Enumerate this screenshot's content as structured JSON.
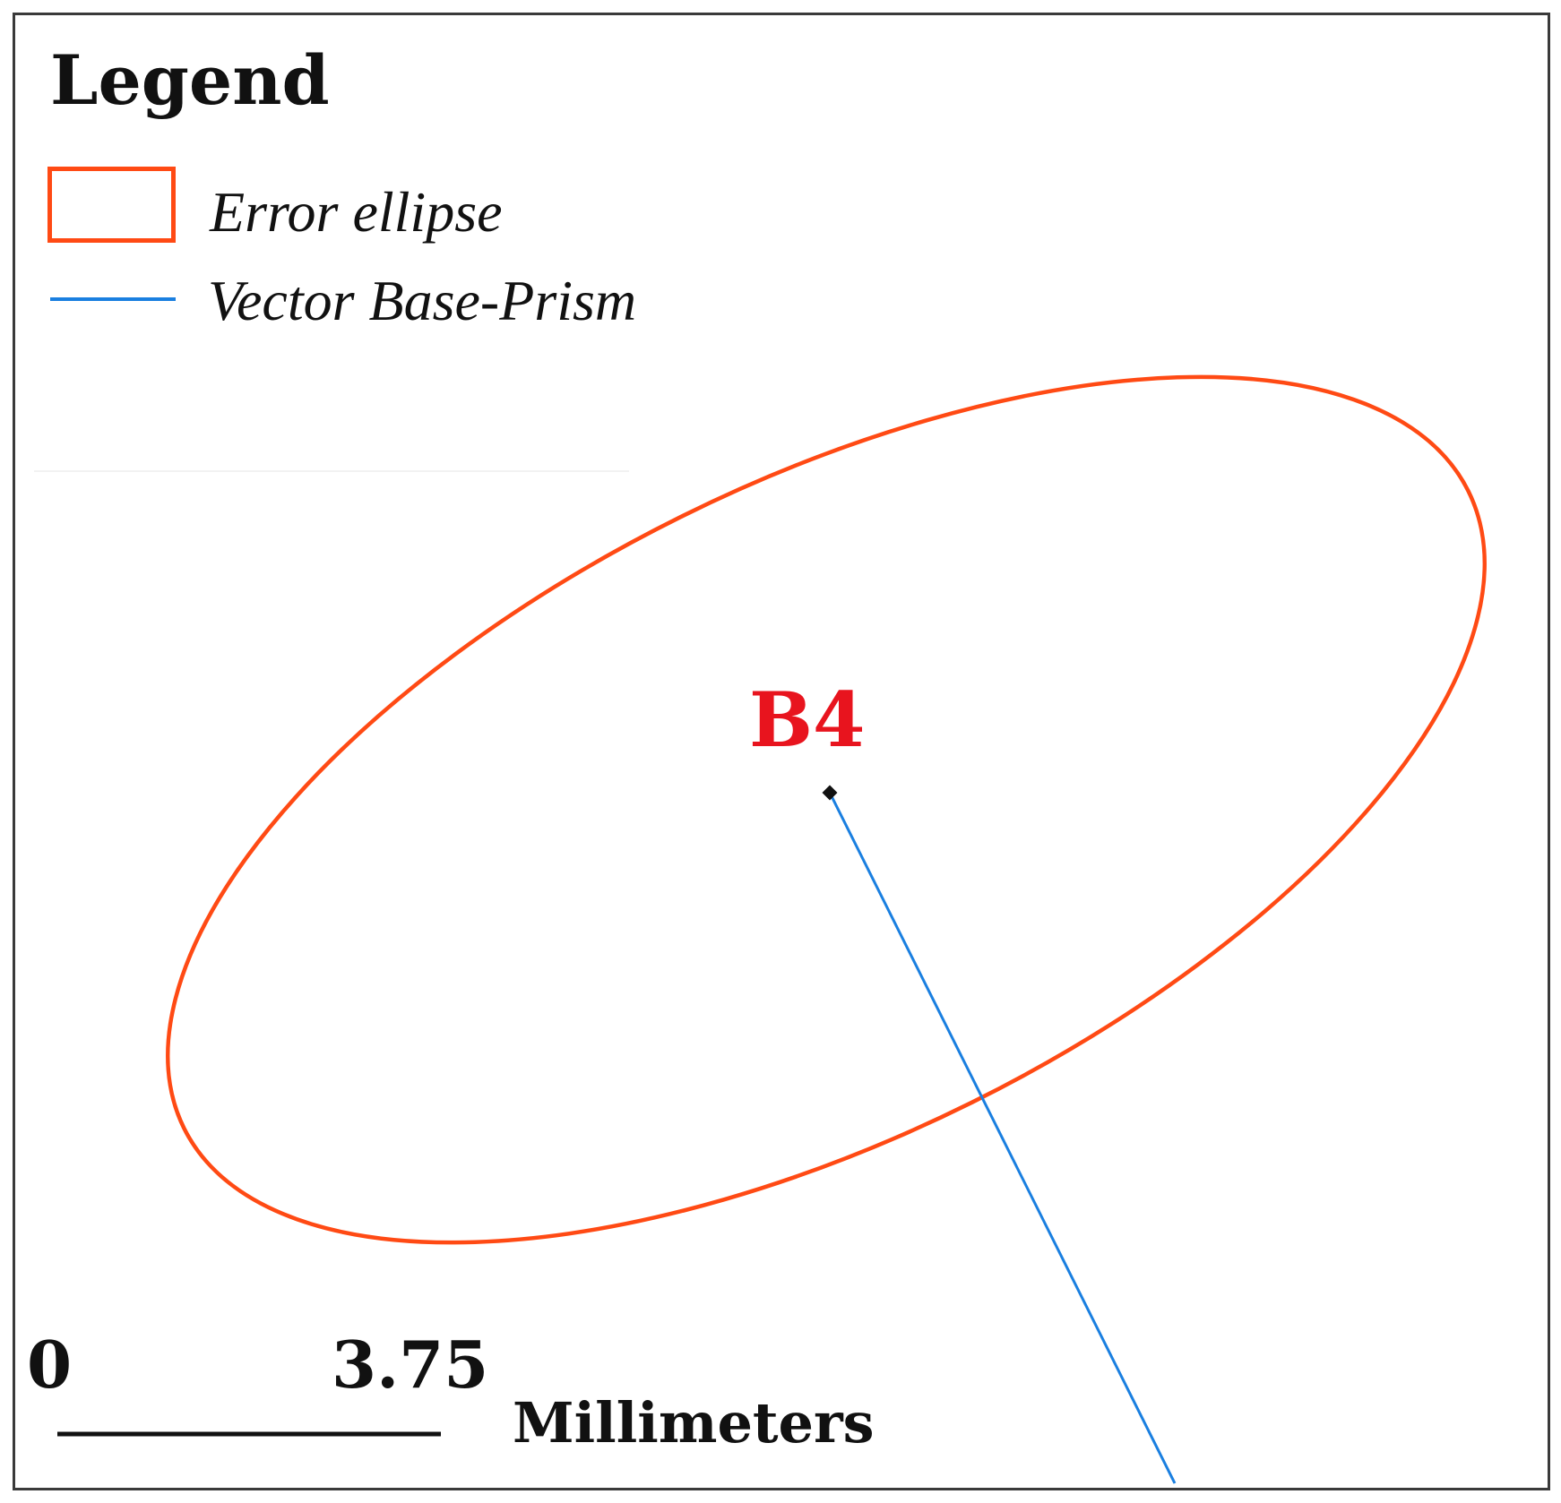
{
  "legend": {
    "title": "Legend",
    "items": [
      {
        "label": "Error ellipse",
        "symbol": "rectangle-outline",
        "color": "#ff4a14"
      },
      {
        "label": "Vector Base-Prism",
        "symbol": "line",
        "color": "#1a7fe0"
      }
    ]
  },
  "point": {
    "label": "B4",
    "label_color": "#e8141e",
    "marker_color": "#111111"
  },
  "error_ellipse": {
    "color": "#ff4a14",
    "orientation": "tilted, major axis rising to the right"
  },
  "vector": {
    "color": "#1a7fe0",
    "direction": "from B4 toward lower right, beyond map frame"
  },
  "scale_bar": {
    "start": "0",
    "end": "3.75",
    "unit": "Millimeters"
  },
  "colors": {
    "frame": "#3a3a3a",
    "background": "#ffffff"
  }
}
